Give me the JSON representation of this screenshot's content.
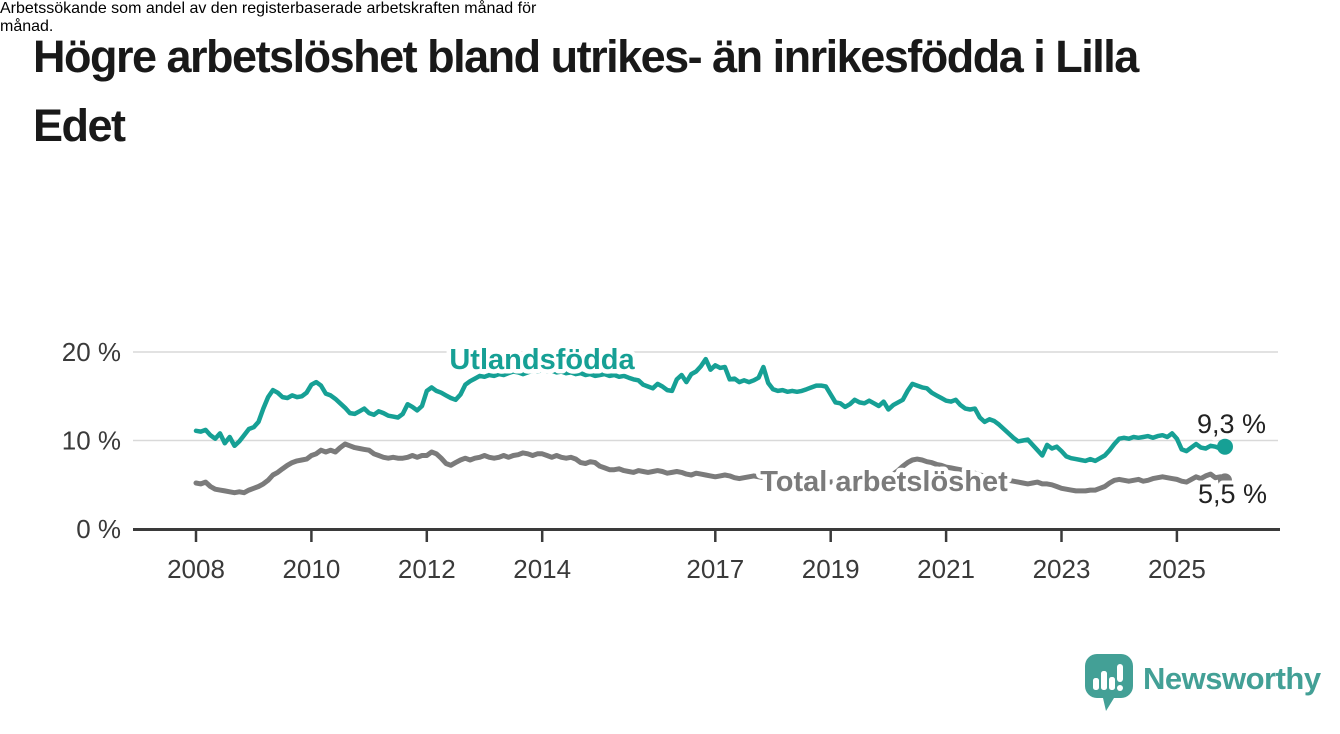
{
  "header": {
    "title": "Högre arbetslöshet bland utrikes- än inrikesfödda i Lilla Edet",
    "title_lines": [
      "Högre arbetslöshet bland utrikes- än inrikesfödda i Lilla",
      "Edet"
    ],
    "subtitle": "Arbetssökande som andel av den registerbaserade arbetskraften månad för månad.",
    "subtitle_lines": [
      "Arbetssökande som andel av den registerbaserade arbetskraften månad för",
      "månad."
    ]
  },
  "footer": {
    "brand": "Newsworthy",
    "brand_color": "#43a096",
    "logo_icon": "bar-chart-speech-bubble-icon"
  },
  "chart_data": {
    "type": "line",
    "title": "Högre arbetslöshet bland utrikes- än inrikesfödda i Lilla Edet",
    "subtitle": "Arbetssökande som andel av den registerbaserade arbetskraften månad för månad.",
    "unit": "%",
    "legend_position": "inline-labels-on-lines",
    "grid": true,
    "style": {
      "grid_color": "#d9d9d9",
      "axis_color": "#3a3a3a",
      "tick_label_color": "#3a3a3a",
      "value_label_color": "#222222",
      "background": "#ffffff"
    },
    "x_axis": {
      "label": "",
      "ticks": [
        2008,
        2010,
        2012,
        2014,
        2017,
        2019,
        2021,
        2023,
        2025
      ],
      "tick_labels": [
        "2008",
        "2010",
        "2012",
        "2014",
        "2017",
        "2019",
        "2021",
        "2023",
        "2025"
      ],
      "range": [
        2006.9,
        2026.8
      ]
    },
    "y_axis": {
      "label": "",
      "ticks": [
        0,
        10,
        20
      ],
      "tick_labels": [
        "0 %",
        "10 %",
        "20 %"
      ],
      "range": [
        0,
        21.4
      ]
    },
    "series": [
      {
        "id": "utlandsfodda",
        "name": "Utlandsfödda",
        "inline_label": "Utlandsfödda",
        "end_label": "9,3 %",
        "end_value": 9.3,
        "color": "#16a095",
        "x_start": 2008.0,
        "x_step": 0.083333,
        "values": [
          11.1,
          11.0,
          11.2,
          10.6,
          10.2,
          10.8,
          9.7,
          10.4,
          9.4,
          9.9,
          10.6,
          11.3,
          11.5,
          12.1,
          13.6,
          14.9,
          15.7,
          15.4,
          14.9,
          14.8,
          15.1,
          14.9,
          15.0,
          15.4,
          16.3,
          16.6,
          16.2,
          15.3,
          15.1,
          14.7,
          14.2,
          13.7,
          13.1,
          13.0,
          13.3,
          13.6,
          13.1,
          12.9,
          13.3,
          13.1,
          12.8,
          12.7,
          12.6,
          13.0,
          14.1,
          13.8,
          13.4,
          13.9,
          15.6,
          16.0,
          15.6,
          15.4,
          15.1,
          14.8,
          14.6,
          15.2,
          16.3,
          16.7,
          17.0,
          17.3,
          17.2,
          17.4,
          17.3,
          17.5,
          17.4,
          17.6,
          17.8,
          17.7,
          17.5,
          17.7,
          17.9,
          17.8,
          18.0,
          17.8,
          17.9,
          17.7,
          17.8,
          17.6,
          17.7,
          17.5,
          17.6,
          17.4,
          17.5,
          17.3,
          17.4,
          17.5,
          17.3,
          17.4,
          17.2,
          17.3,
          17.1,
          16.9,
          16.8,
          16.3,
          16.1,
          15.9,
          16.4,
          16.1,
          15.7,
          15.6,
          16.9,
          17.4,
          16.6,
          17.5,
          17.8,
          18.4,
          19.2,
          18.0,
          18.5,
          18.2,
          18.3,
          16.9,
          17.0,
          16.6,
          16.8,
          16.6,
          16.8,
          17.1,
          18.3,
          16.5,
          15.8,
          15.6,
          15.7,
          15.5,
          15.6,
          15.5,
          15.6,
          15.8,
          16.0,
          16.2,
          16.2,
          16.1,
          15.2,
          14.3,
          14.2,
          13.8,
          14.1,
          14.6,
          14.3,
          14.2,
          14.5,
          14.2,
          13.9,
          14.4,
          13.5,
          14.0,
          14.3,
          14.6,
          15.6,
          16.4,
          16.2,
          16.0,
          15.9,
          15.4,
          15.1,
          14.8,
          14.5,
          14.4,
          14.6,
          14.0,
          13.6,
          13.5,
          13.6,
          12.6,
          12.1,
          12.4,
          12.2,
          11.8,
          11.3,
          10.8,
          10.3,
          9.9,
          10.0,
          10.1,
          9.5,
          8.9,
          8.3,
          9.5,
          9.1,
          9.3,
          8.8,
          8.2,
          8.0,
          7.9,
          7.8,
          7.7,
          7.9,
          7.7,
          8.0,
          8.3,
          8.9,
          9.6,
          10.2,
          10.3,
          10.2,
          10.4,
          10.3,
          10.4,
          10.5,
          10.3,
          10.5,
          10.6,
          10.4,
          10.8,
          10.2,
          9.0,
          8.8,
          9.2,
          9.6,
          9.2,
          9.1,
          9.4,
          9.3,
          9.1,
          9.3
        ]
      },
      {
        "id": "total",
        "name": "Total arbetslöshet",
        "inline_label": "Total arbetslöshet",
        "end_label": "5,5 %",
        "end_value": 5.5,
        "color": "#7b7b7b",
        "x_start": 2008.0,
        "x_step": 0.083333,
        "values": [
          5.2,
          5.1,
          5.3,
          4.8,
          4.5,
          4.4,
          4.3,
          4.2,
          4.1,
          4.2,
          4.1,
          4.4,
          4.6,
          4.8,
          5.1,
          5.5,
          6.1,
          6.4,
          6.8,
          7.2,
          7.5,
          7.7,
          7.8,
          7.9,
          8.3,
          8.5,
          8.9,
          8.7,
          8.9,
          8.7,
          9.2,
          9.6,
          9.4,
          9.2,
          9.1,
          9.0,
          8.9,
          8.5,
          8.3,
          8.1,
          8.0,
          8.1,
          8.0,
          8.0,
          8.1,
          8.3,
          8.1,
          8.3,
          8.3,
          8.7,
          8.5,
          8.0,
          7.4,
          7.2,
          7.5,
          7.8,
          8.0,
          7.8,
          8.0,
          8.1,
          8.3,
          8.1,
          8.0,
          8.1,
          8.3,
          8.1,
          8.3,
          8.4,
          8.6,
          8.5,
          8.3,
          8.5,
          8.5,
          8.3,
          8.1,
          8.3,
          8.1,
          8.0,
          8.1,
          7.9,
          7.5,
          7.4,
          7.6,
          7.5,
          7.1,
          6.9,
          6.7,
          6.7,
          6.8,
          6.6,
          6.5,
          6.4,
          6.6,
          6.5,
          6.4,
          6.5,
          6.6,
          6.5,
          6.3,
          6.4,
          6.5,
          6.4,
          6.2,
          6.1,
          6.3,
          6.2,
          6.1,
          6.0,
          5.9,
          6.0,
          6.1,
          6.0,
          5.8,
          5.7,
          5.8,
          5.9,
          6.0,
          5.9,
          5.8,
          5.7,
          5.6,
          5.5,
          5.4,
          5.5,
          5.4,
          5.5,
          5.5,
          5.4,
          5.3,
          5.4,
          5.3,
          5.4,
          5.3,
          5.4,
          5.5,
          5.4,
          5.5,
          5.4,
          5.5,
          5.6,
          5.5,
          5.6,
          5.7,
          5.8,
          6.0,
          6.2,
          6.6,
          7.1,
          7.5,
          7.8,
          7.9,
          7.8,
          7.6,
          7.5,
          7.3,
          7.2,
          7.0,
          6.9,
          6.8,
          6.7,
          6.5,
          6.4,
          6.3,
          6.1,
          6.0,
          5.9,
          5.8,
          5.7,
          5.6,
          5.5,
          5.4,
          5.3,
          5.2,
          5.1,
          5.2,
          5.3,
          5.1,
          5.1,
          5.0,
          4.8,
          4.6,
          4.5,
          4.4,
          4.3,
          4.3,
          4.3,
          4.4,
          4.4,
          4.6,
          4.8,
          5.2,
          5.5,
          5.6,
          5.5,
          5.4,
          5.5,
          5.6,
          5.4,
          5.5,
          5.7,
          5.8,
          5.9,
          5.8,
          5.7,
          5.6,
          5.4,
          5.3,
          5.6,
          5.9,
          5.7,
          6.0,
          6.2,
          5.8,
          5.9,
          5.5
        ]
      }
    ]
  }
}
